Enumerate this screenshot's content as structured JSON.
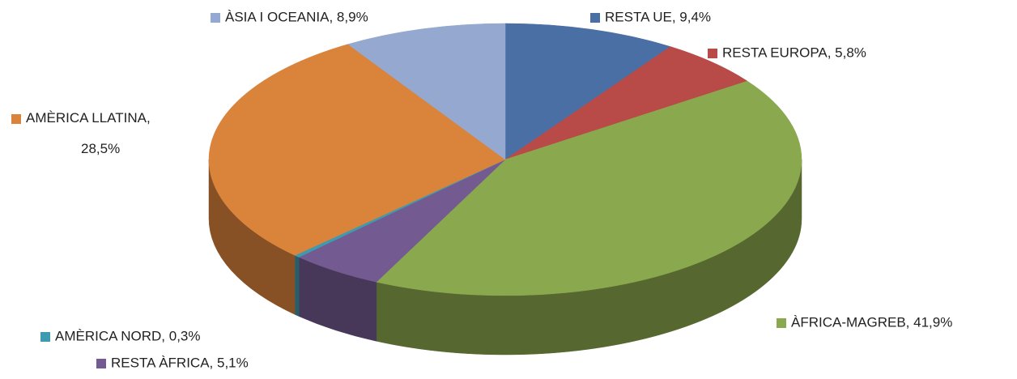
{
  "chart_data": {
    "type": "pie3d",
    "categories": [
      "RESTA UE",
      "RESTA EUROPA",
      "ÀFRICA-MAGREB",
      "RESTA ÀFRICA",
      "AMÈRICA NORD",
      "AMÈRICA LLATINA",
      "ÀSIA I OCEANIA"
    ],
    "values": [
      9.4,
      5.8,
      41.9,
      5.1,
      0.3,
      28.5,
      8.9
    ],
    "value_labels": [
      "RESTA UE, 9,4%",
      "RESTA EUROPA, 5,8%",
      "ÀFRICA-MAGREB, 41,9%",
      "RESTA ÀFRICA, 5,1%",
      "AMÈRICA NORD, 0,3%",
      "AMÈRICA LLATINA, 28,5%",
      "ÀSIA I OCEANIA, 8,9%"
    ],
    "colors": [
      "#4a6fa5",
      "#b84a47",
      "#8aa84e",
      "#735a91",
      "#3e9aae",
      "#d9833b",
      "#94a8d0"
    ]
  }
}
